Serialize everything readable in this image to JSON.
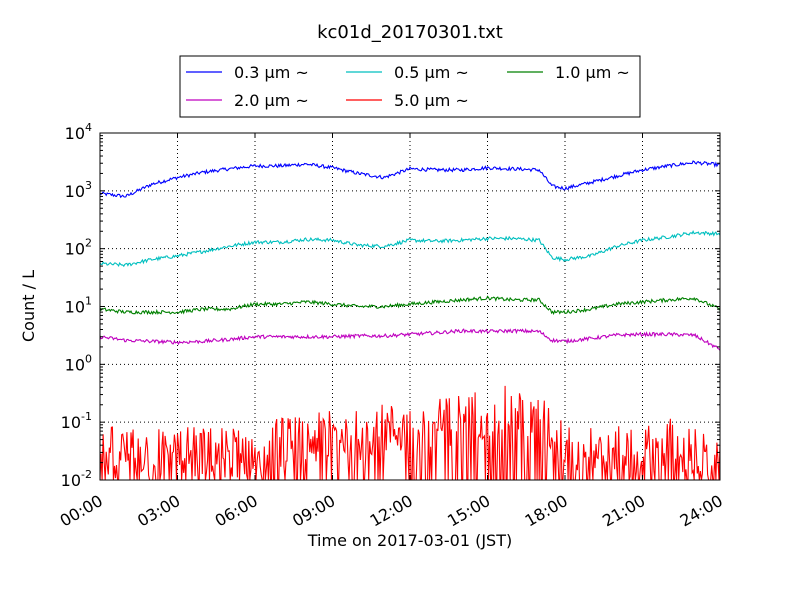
{
  "chart_data": {
    "type": "line",
    "title": "kc01d_20170301.txt",
    "xlabel": "Time on 2017-03-01 (JST)",
    "ylabel": "Count / L",
    "y_scale": "log",
    "xlim": [
      "00:00",
      "24:00"
    ],
    "ylim": [
      0.01,
      10000
    ],
    "x_ticks": [
      "00:00",
      "03:00",
      "06:00",
      "09:00",
      "12:00",
      "15:00",
      "18:00",
      "21:00",
      "24:00"
    ],
    "y_ticks": [
      {
        "base": "10",
        "exp": "-2"
      },
      {
        "base": "10",
        "exp": "-1"
      },
      {
        "base": "10",
        "exp": "0"
      },
      {
        "base": "10",
        "exp": "1"
      },
      {
        "base": "10",
        "exp": "2"
      },
      {
        "base": "10",
        "exp": "3"
      },
      {
        "base": "10",
        "exp": "4"
      }
    ],
    "grid": true,
    "legend_position": "top-center",
    "series": [
      {
        "name": "0.3 μm  ~",
        "color": "#0000ff",
        "x": [
          "00:00",
          "01:00",
          "02:00",
          "03:00",
          "04:00",
          "05:00",
          "06:00",
          "07:00",
          "08:00",
          "09:00",
          "10:00",
          "11:00",
          "12:00",
          "13:00",
          "14:00",
          "15:00",
          "16:00",
          "17:00",
          "17:30",
          "18:00",
          "19:00",
          "20:00",
          "21:00",
          "22:00",
          "23:00",
          "24:00"
        ],
        "y": [
          900,
          800,
          1300,
          1700,
          2100,
          2400,
          2700,
          2700,
          2900,
          2500,
          2000,
          1700,
          2400,
          2300,
          2300,
          2500,
          2400,
          2300,
          1200,
          1100,
          1400,
          1800,
          2300,
          2700,
          3100,
          2800
        ]
      },
      {
        "name": "0.5 μm  ~",
        "color": "#00bfbf",
        "x": [
          "00:00",
          "01:00",
          "02:00",
          "03:00",
          "04:00",
          "05:00",
          "06:00",
          "07:00",
          "08:00",
          "09:00",
          "10:00",
          "11:00",
          "12:00",
          "13:00",
          "14:00",
          "15:00",
          "16:00",
          "17:00",
          "17:30",
          "18:00",
          "19:00",
          "20:00",
          "21:00",
          "22:00",
          "23:00",
          "24:00"
        ],
        "y": [
          55,
          52,
          65,
          75,
          90,
          110,
          130,
          130,
          145,
          140,
          115,
          110,
          140,
          135,
          140,
          150,
          150,
          140,
          70,
          65,
          75,
          110,
          140,
          160,
          190,
          180
        ]
      },
      {
        "name": "1.0 μm  ~",
        "color": "#008000",
        "x": [
          "00:00",
          "01:00",
          "02:00",
          "03:00",
          "04:00",
          "05:00",
          "06:00",
          "07:00",
          "08:00",
          "09:00",
          "10:00",
          "11:00",
          "12:00",
          "13:00",
          "14:00",
          "15:00",
          "16:00",
          "17:00",
          "17:30",
          "18:00",
          "19:00",
          "20:00",
          "21:00",
          "22:00",
          "23:00",
          "24:00"
        ],
        "y": [
          9,
          8,
          8,
          8,
          9,
          9,
          11,
          11,
          12,
          11,
          10,
          10,
          11,
          12,
          13,
          14,
          13,
          13,
          8,
          8,
          9,
          11,
          12,
          13,
          14,
          9
        ]
      },
      {
        "name": "2.0 μm  ~",
        "color": "#bf00bf",
        "x": [
          "00:00",
          "01:00",
          "02:00",
          "03:00",
          "04:00",
          "05:00",
          "06:00",
          "07:00",
          "08:00",
          "09:00",
          "10:00",
          "11:00",
          "12:00",
          "13:00",
          "14:00",
          "15:00",
          "16:00",
          "17:00",
          "17:30",
          "18:00",
          "19:00",
          "20:00",
          "21:00",
          "22:00",
          "23:00",
          "24:00"
        ],
        "y": [
          3,
          2.6,
          2.5,
          2.4,
          2.5,
          2.7,
          3,
          3,
          3,
          3,
          3.1,
          3.1,
          3.3,
          3.5,
          3.8,
          3.7,
          3.8,
          3.7,
          2.6,
          2.5,
          2.8,
          3.2,
          3.3,
          3.3,
          3.2,
          1.8
        ]
      },
      {
        "name": "5.0 μm  ~",
        "color": "#ff0000",
        "x": [
          "00:00",
          "01:00",
          "02:00",
          "03:00",
          "04:00",
          "05:00",
          "06:00",
          "07:00",
          "08:00",
          "09:00",
          "10:00",
          "11:00",
          "12:00",
          "13:00",
          "14:00",
          "15:00",
          "16:00",
          "17:00",
          "18:00",
          "19:00",
          "20:00",
          "21:00",
          "22:00",
          "23:00",
          "24:00"
        ],
        "y": [
          0.02,
          0.02,
          0.02,
          0.02,
          0.02,
          0.02,
          0.02,
          0.03,
          0.03,
          0.04,
          0.04,
          0.05,
          0.05,
          0.06,
          0.08,
          0.1,
          0.1,
          0.07,
          0.03,
          0.02,
          0.02,
          0.02,
          0.03,
          0.02,
          0.01
        ]
      }
    ]
  }
}
